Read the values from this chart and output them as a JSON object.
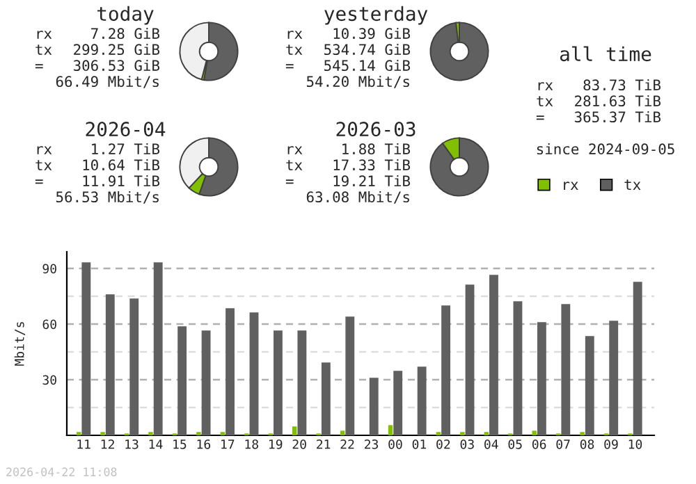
{
  "chart_data": [
    {
      "type": "donut",
      "title": "today",
      "categories": [
        null,
        null,
        null
      ],
      "values": [
        52.7,
        1.3,
        46
      ],
      "colors": [
        "#606060",
        "#80c000",
        "#f0f0f0"
      ],
      "annotations": [
        "rx 7.28 GiB",
        "tx 299.25 GiB",
        "= 306.53 GiB",
        "66.49 Mbit/s"
      ]
    },
    {
      "type": "donut",
      "title": "yesterday",
      "categories": [
        null,
        null
      ],
      "values": [
        98.1,
        1.9
      ],
      "colors": [
        "#606060",
        "#80c000"
      ],
      "annotations": [
        "rx 10.39 GiB",
        "tx 534.74 GiB",
        "= 545.14 GiB",
        "54.20 Mbit/s"
      ]
    },
    {
      "type": "donut",
      "title": "2026-04",
      "categories": [
        null,
        null,
        null
      ],
      "values": [
        55.4,
        6.6,
        38
      ],
      "colors": [
        "#606060",
        "#80c000",
        "#f0f0f0"
      ],
      "annotations": [
        "rx 1.27 TiB",
        "tx 10.64 TiB",
        "= 11.91 TiB",
        "56.53 Mbit/s"
      ]
    },
    {
      "type": "donut",
      "title": "2026-03",
      "categories": [
        null,
        null
      ],
      "values": [
        90.2,
        9.8
      ],
      "colors": [
        "#606060",
        "#80c000"
      ],
      "annotations": [
        "rx 1.88 TiB",
        "tx 17.33 TiB",
        "= 19.21 TiB",
        "63.08 Mbit/s"
      ]
    },
    {
      "type": "other",
      "title": "all time",
      "annotations": [
        "rx 83.73 TiB",
        "tx 281.63 TiB",
        "= 365.37 TiB",
        "since 2024-09-05"
      ]
    },
    {
      "type": "bar",
      "ylabel": "Mbit/s",
      "categories": [
        "11",
        "12",
        "13",
        "14",
        "15",
        "16",
        "17",
        "18",
        "19",
        "20",
        "21",
        "22",
        "23",
        "00",
        "01",
        "02",
        "03",
        "04",
        "05",
        "06",
        "07",
        "08",
        "09",
        "10"
      ],
      "series": [
        {
          "name": "rx",
          "color": "#80c000",
          "values": [
            1.8,
            1.8,
            1,
            1.8,
            1,
            1.8,
            1.8,
            1,
            1,
            4.8,
            1,
            2.5,
            null,
            5.5,
            null,
            1.8,
            1.8,
            1.8,
            1,
            2.5,
            1,
            1.8,
            1,
            1
          ]
        },
        {
          "name": "tx",
          "color": "#606060",
          "values": [
            93.3,
            76,
            73.8,
            93.3,
            58.8,
            56.5,
            68.5,
            66.3,
            56.5,
            56.5,
            39.3,
            64,
            31,
            34.8,
            37,
            70,
            81.3,
            86.5,
            72.3,
            61,
            70.8,
            53.5,
            61.8,
            82.8
          ]
        }
      ],
      "ylim": [
        0,
        99
      ],
      "yticks": [
        {
          "value": 15,
          "label": null
        },
        30,
        {
          "value": 45,
          "label": null
        },
        60,
        {
          "value": 75,
          "label": null
        },
        90
      ],
      "grid": "y",
      "legend": "top right",
      "annotations": [
        "2026-04-22 11:08"
      ]
    }
  ]
}
